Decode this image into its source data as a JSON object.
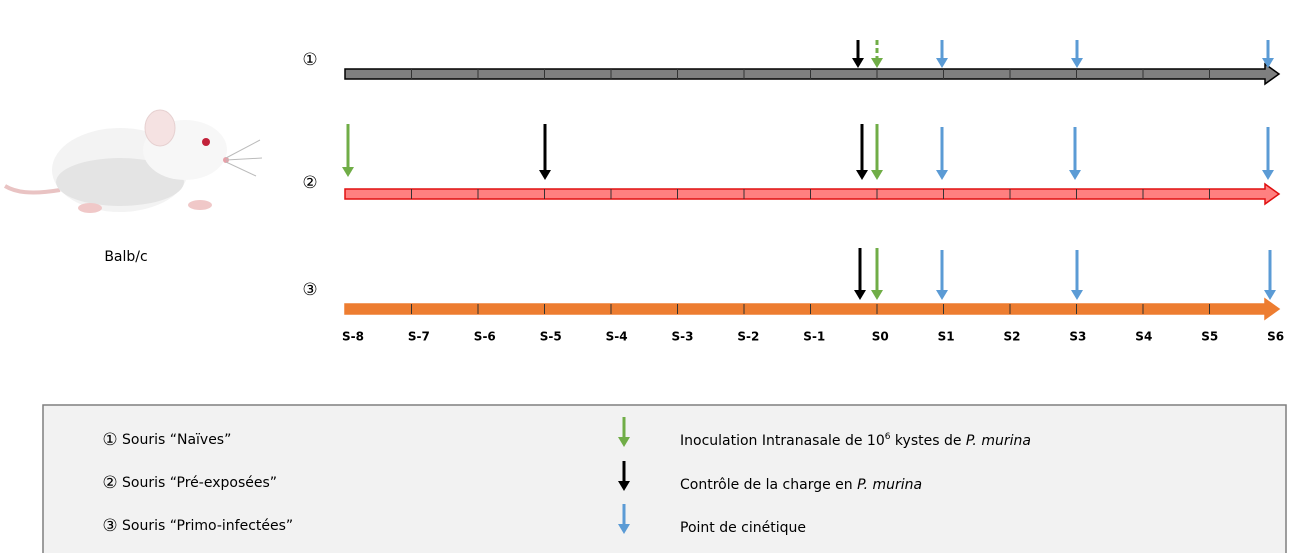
{
  "mouse_label": "Balb/c",
  "timelines": [
    {
      "marker": "①"
    },
    {
      "marker": "②"
    },
    {
      "marker": "③"
    }
  ],
  "weeks": [
    "S-8",
    "S-7",
    "S-6",
    "S-5",
    "S-4",
    "S-3",
    "S-2",
    "S-1",
    "S0",
    "S1",
    "S2",
    "S3",
    "S4",
    "S5",
    "S6"
  ],
  "legend": {
    "groups": [
      {
        "marker": "①",
        "label": "Souris “Naïves”"
      },
      {
        "marker": "②",
        "label": "Souris “Pré-exposées”"
      },
      {
        "marker": "③",
        "label": "Souris “Primo-infectées”"
      }
    ],
    "events": [
      {
        "text": "Inoculation Intranasale de 10",
        "sup": "6",
        "text2": " kystes de ",
        "italic": "P. murina"
      },
      {
        "text": "Contrôle de la charge en ",
        "italic": "P. murina"
      },
      {
        "text": "Point de cinétique"
      }
    ]
  }
}
